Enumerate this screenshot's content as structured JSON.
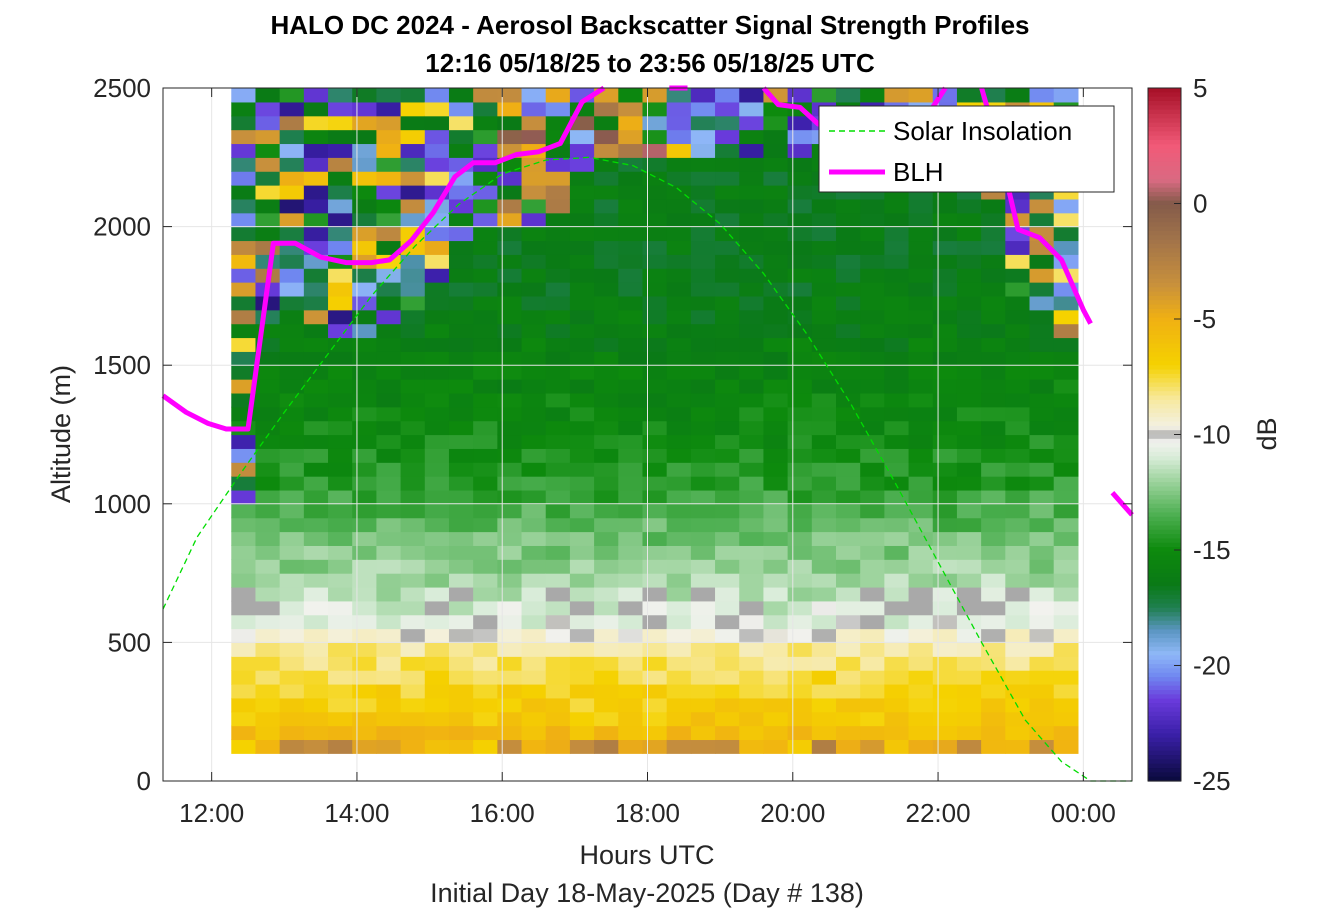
{
  "chart_data": {
    "type": "heatmap",
    "title": "HALO DC 2024 - Aerosol Backscatter Signal Strength Profiles",
    "subtitle": "12:16 05/18/25 to 23:56 05/18/25  UTC",
    "xlabel": "Hours UTC",
    "footer": "Initial Day 18-May-2025 (Day # 138)",
    "ylabel": "Altitude (m)",
    "colorbar_label": "dB",
    "xlim": [
      11.33,
      24.67
    ],
    "ylim": [
      0,
      2500
    ],
    "x_ticks": [
      12,
      14,
      16,
      18,
      20,
      22,
      24
    ],
    "x_tick_labels": [
      "12:00",
      "14:00",
      "16:00",
      "18:00",
      "20:00",
      "22:00",
      "00:00"
    ],
    "y_ticks": [
      0,
      500,
      1000,
      1500,
      2000,
      2500
    ],
    "y_tick_labels": [
      "0",
      "500",
      "1000",
      "1500",
      "2000",
      "2500"
    ],
    "clim": [
      -25,
      5
    ],
    "colorbar_ticks": [
      5,
      0,
      -5,
      -10,
      -15,
      -20,
      -25
    ],
    "colorbar_tick_labels": [
      "5",
      "0",
      "-5",
      "-10",
      "-15",
      "-20",
      "-25"
    ],
    "colormap": [
      [
        -25.0,
        "#0a0a3c"
      ],
      [
        -23.0,
        "#3a1fa8"
      ],
      [
        -21.5,
        "#6a3bdc"
      ],
      [
        -20.5,
        "#6f86f0"
      ],
      [
        -19.5,
        "#8fb8f7"
      ],
      [
        -18.5,
        "#5b96c2"
      ],
      [
        -17.5,
        "#1f7f4f"
      ],
      [
        -16.5,
        "#0a7a16"
      ],
      [
        -15.0,
        "#0d8a0d"
      ],
      [
        -13.5,
        "#4caf50"
      ],
      [
        -12.0,
        "#9fd49f"
      ],
      [
        -11.0,
        "#d8ecd8"
      ],
      [
        -10.3,
        "#f2f2ee"
      ],
      [
        -10.0,
        "#a9a9a9"
      ],
      [
        -9.7,
        "#f3f1e4"
      ],
      [
        -8.5,
        "#f7e9a0"
      ],
      [
        -7.0,
        "#f5d200"
      ],
      [
        -5.0,
        "#f0b013"
      ],
      [
        -3.5,
        "#c8903c"
      ],
      [
        -1.5,
        "#a0724a"
      ],
      [
        0.0,
        "#845a4a"
      ],
      [
        1.0,
        "#d96a82"
      ],
      [
        2.5,
        "#f25a78"
      ],
      [
        5.0,
        "#a50f26"
      ]
    ],
    "x_bins_start": 12.27,
    "x_bin_width": 0.333,
    "y_bins_start": 100,
    "y_bin_width": 50,
    "base_profile": [
      {
        "alt": 100,
        "db": -4.0
      },
      {
        "alt": 200,
        "db": -6.3
      },
      {
        "alt": 350,
        "db": -7.3
      },
      {
        "alt": 480,
        "db": -8.6
      },
      {
        "alt": 560,
        "db": -10.5
      },
      {
        "alt": 700,
        "db": -11.7
      },
      {
        "alt": 900,
        "db": -13.0
      },
      {
        "alt": 1100,
        "db": -14.5
      },
      {
        "alt": 1300,
        "db": -15.2
      },
      {
        "alt": 1600,
        "db": -16.0
      },
      {
        "alt": 1800,
        "db": -16.4
      }
    ],
    "top_of_data_m": [
      2500,
      2500,
      2500,
      2500,
      2500,
      2500,
      2500,
      2500,
      2500,
      2500,
      2500,
      2500,
      2500,
      2500,
      2500,
      2500,
      2500,
      2500,
      2500,
      2500,
      2500,
      2500,
      2500,
      2500,
      2500,
      2500,
      2500,
      2500,
      2500,
      2500,
      2500,
      2500,
      2500,
      2500,
      2500
    ],
    "series": [
      {
        "name": "Solar Insolation",
        "style": "dashed",
        "color": "#00dd00",
        "x": [
          11.33,
          11.8,
          12.4,
          13.0,
          13.6,
          14.2,
          14.8,
          15.4,
          16.0,
          16.6,
          17.2,
          17.8,
          18.4,
          19.0,
          19.6,
          20.2,
          20.8,
          21.4,
          22.0,
          22.6,
          23.2,
          23.7,
          24.1,
          24.67
        ],
        "y": [
          620,
          880,
          1110,
          1330,
          1540,
          1750,
          1930,
          2080,
          2190,
          2240,
          2250,
          2220,
          2140,
          2010,
          1830,
          1610,
          1360,
          1080,
          790,
          500,
          220,
          70,
          0,
          0
        ]
      },
      {
        "name": "BLH",
        "style": "solid",
        "color": "#ff00ff",
        "segments": [
          {
            "x": [
              11.33,
              11.65,
              11.95,
              12.2,
              12.5,
              12.85,
              13.15,
              13.5,
              13.85,
              14.2,
              14.45,
              14.75,
              15.05,
              15.35,
              15.6,
              15.9,
              16.2,
              16.5,
              16.8,
              17.1,
              17.4
            ],
            "y": [
              1390,
              1330,
              1290,
              1270,
              1270,
              1940,
              1940,
              1890,
              1870,
              1870,
              1880,
              1950,
              2050,
              2180,
              2230,
              2230,
              2260,
              2270,
              2300,
              2450,
              2500
            ]
          },
          {
            "x": [
              18.3,
              18.55
            ],
            "y": [
              2500,
              2500
            ]
          },
          {
            "x": [
              19.6,
              19.8,
              20.1,
              20.35,
              20.6
            ],
            "y": [
              2500,
              2440,
              2430,
              2370,
              2380
            ]
          },
          {
            "x": [
              21.9,
              22.1
            ],
            "y": [
              2420,
              2500
            ]
          },
          {
            "x": [
              22.6,
              22.85,
              23.1,
              23.4,
              23.7,
              24.0,
              24.1
            ],
            "y": [
              2500,
              2270,
              1990,
              1960,
              1880,
              1700,
              1650
            ]
          },
          {
            "x": [
              24.4,
              24.67
            ],
            "y": [
              1040,
              960
            ]
          }
        ]
      }
    ],
    "legend": {
      "placement": "top-right",
      "entries": [
        "Solar Insolation",
        "BLH"
      ]
    },
    "grid": true
  }
}
